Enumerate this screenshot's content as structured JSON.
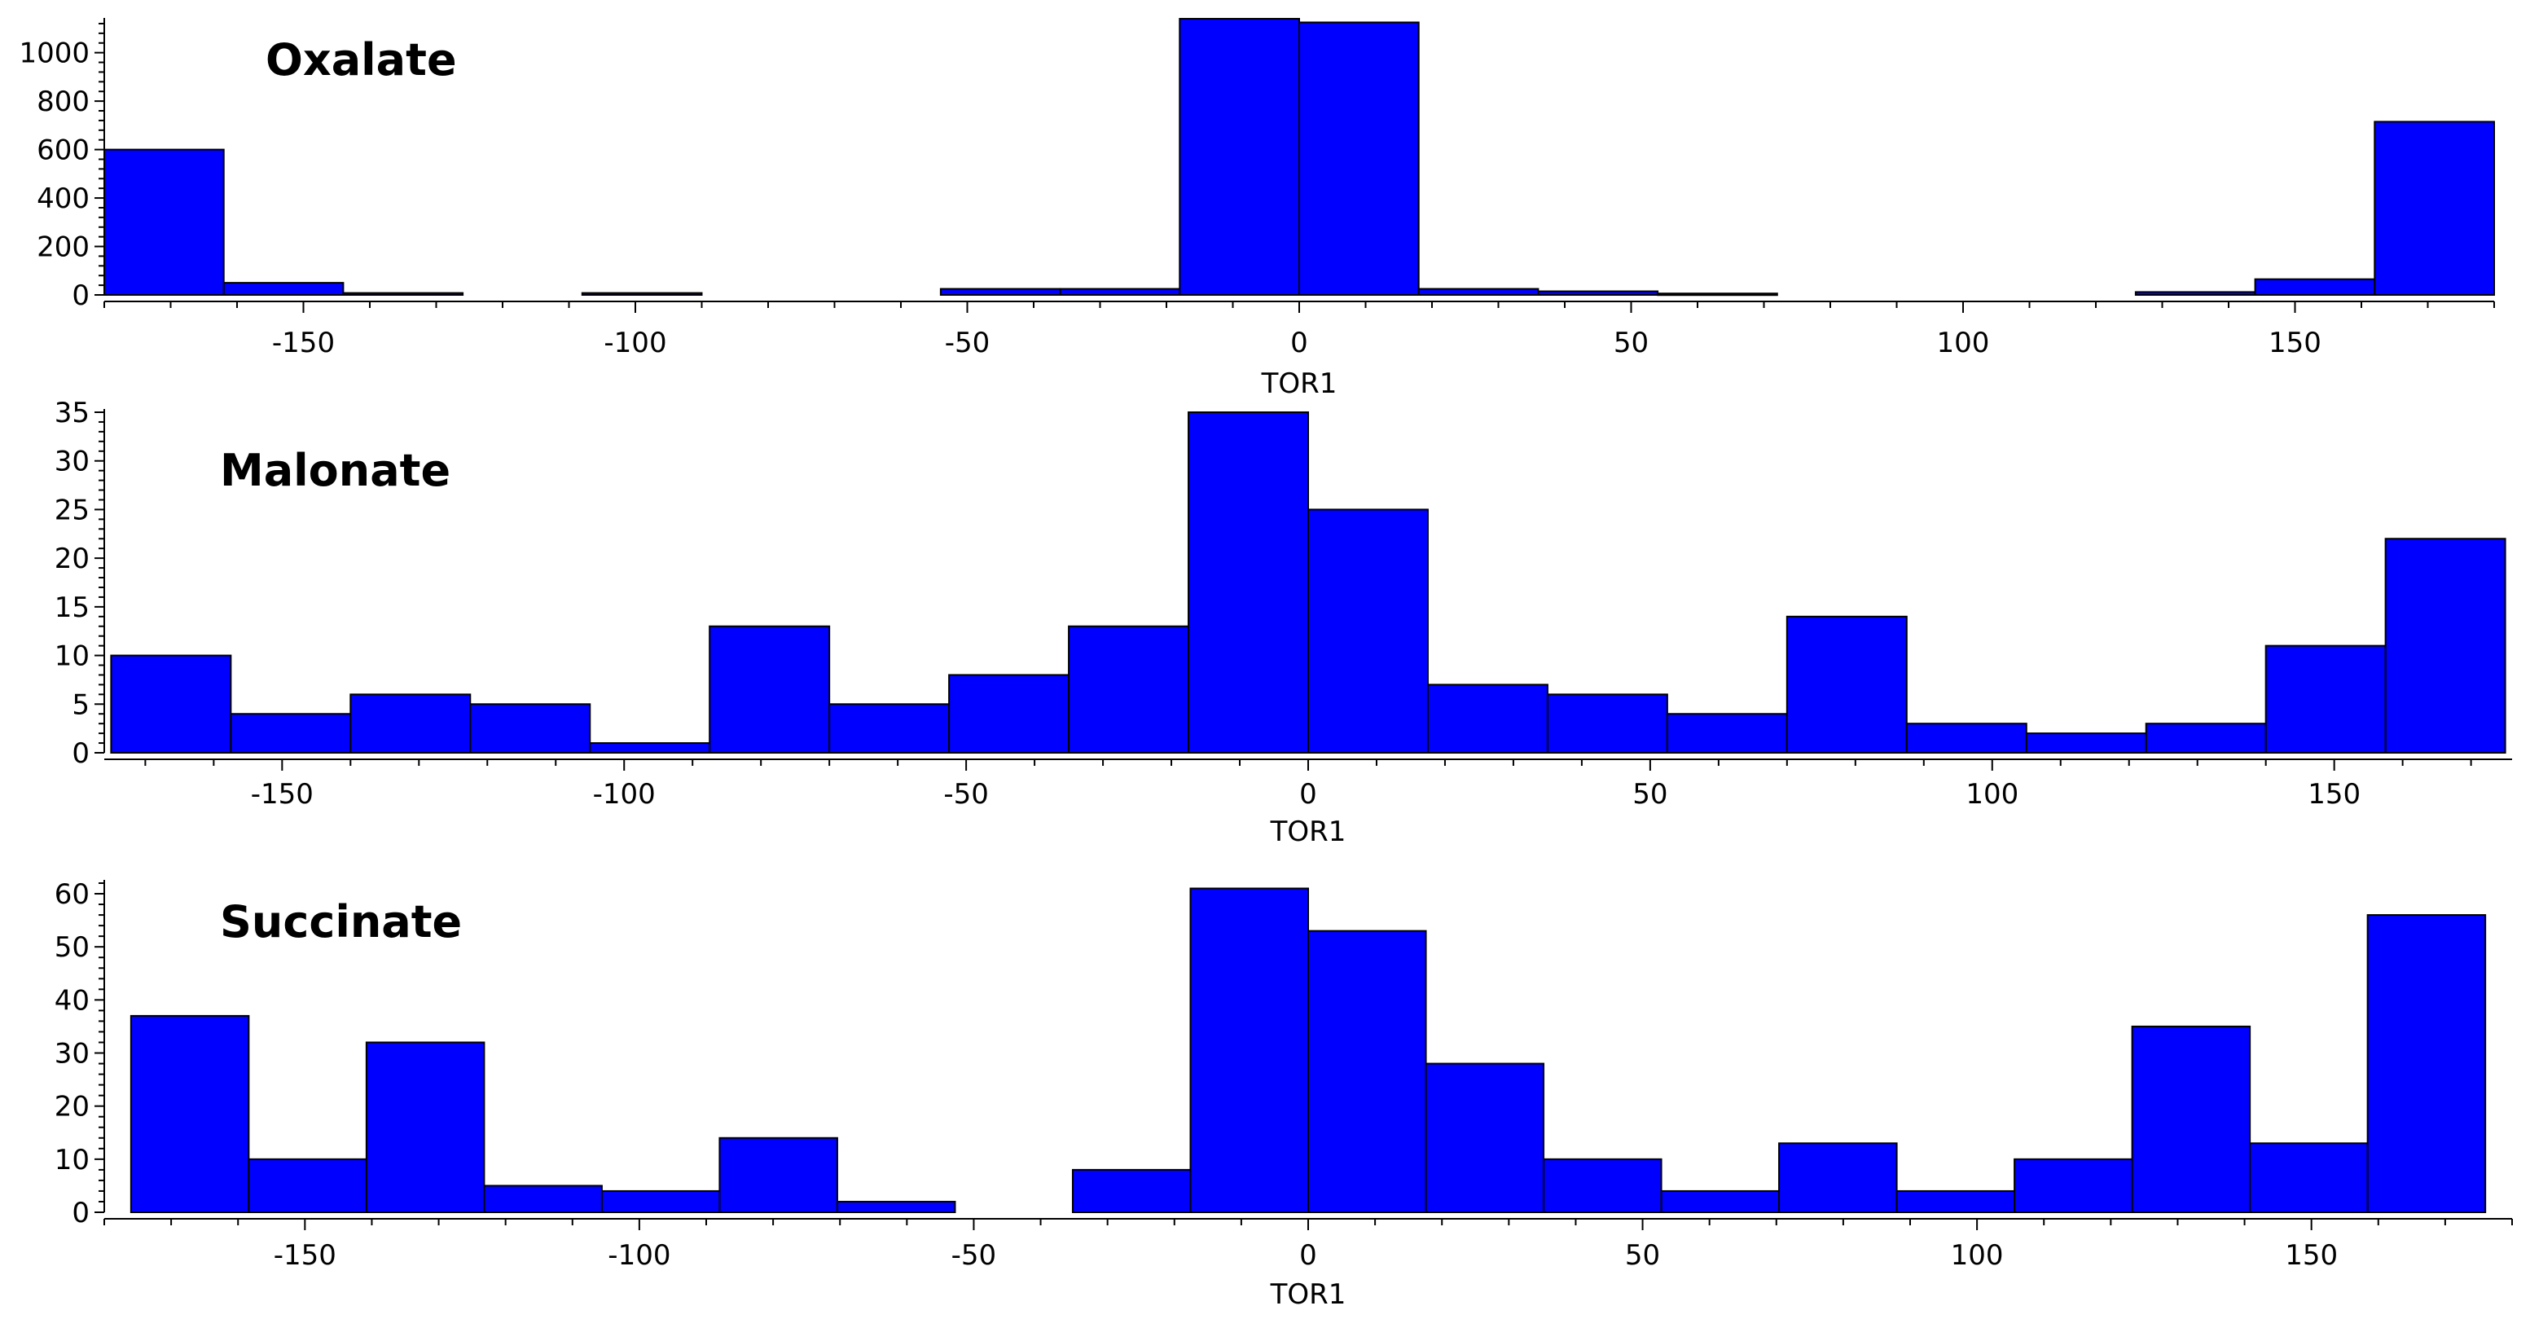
{
  "chart_data": [
    {
      "type": "bar",
      "title": "Oxalate",
      "xlabel": "TOR1",
      "ylabel": "",
      "xlim": [
        -180,
        180
      ],
      "ylim": [
        0,
        1130
      ],
      "xticks": [
        -150,
        -100,
        -50,
        0,
        50,
        100,
        150
      ],
      "yticks": [
        0,
        200,
        400,
        600,
        800,
        1000
      ],
      "bin_width": 18,
      "bins": [
        {
          "x0": -180,
          "x1": -162,
          "value": 600
        },
        {
          "x0": -162,
          "x1": -144,
          "value": 50
        },
        {
          "x0": -144,
          "x1": -126,
          "value": 8
        },
        {
          "x0": -108,
          "x1": -90,
          "value": 8
        },
        {
          "x0": -54,
          "x1": -36,
          "value": 25
        },
        {
          "x0": -36,
          "x1": -18,
          "value": 25
        },
        {
          "x0": -18,
          "x1": 0,
          "value": 1140
        },
        {
          "x0": 0,
          "x1": 18,
          "value": 1125
        },
        {
          "x0": 18,
          "x1": 36,
          "value": 25
        },
        {
          "x0": 36,
          "x1": 54,
          "value": 15
        },
        {
          "x0": 54,
          "x1": 72,
          "value": 6
        },
        {
          "x0": 126,
          "x1": 144,
          "value": 12
        },
        {
          "x0": 144,
          "x1": 162,
          "value": 65
        },
        {
          "x0": 162,
          "x1": 180,
          "value": 715
        }
      ]
    },
    {
      "type": "bar",
      "title": "Malonate",
      "xlabel": "TOR1",
      "ylabel": "",
      "xlim": [
        -176,
        176
      ],
      "ylim": [
        0,
        35
      ],
      "xticks": [
        -150,
        -100,
        -50,
        0,
        50,
        100,
        150
      ],
      "yticks": [
        0,
        5,
        10,
        15,
        20,
        25,
        30,
        35
      ],
      "bin_width": 17.5,
      "bins": [
        {
          "x0": -175,
          "x1": -157.5,
          "value": 10
        },
        {
          "x0": -157.5,
          "x1": -140,
          "value": 4
        },
        {
          "x0": -140,
          "x1": -122.5,
          "value": 6
        },
        {
          "x0": -122.5,
          "x1": -105,
          "value": 5
        },
        {
          "x0": -105,
          "x1": -87.5,
          "value": 1
        },
        {
          "x0": -87.5,
          "x1": -70,
          "value": 13
        },
        {
          "x0": -70,
          "x1": -52.5,
          "value": 5
        },
        {
          "x0": -52.5,
          "x1": -35,
          "value": 8
        },
        {
          "x0": -35,
          "x1": -17.5,
          "value": 13
        },
        {
          "x0": -17.5,
          "x1": 0,
          "value": 35
        },
        {
          "x0": 0,
          "x1": 17.5,
          "value": 25
        },
        {
          "x0": 17.5,
          "x1": 35,
          "value": 7
        },
        {
          "x0": 35,
          "x1": 52.5,
          "value": 6
        },
        {
          "x0": 52.5,
          "x1": 70,
          "value": 4
        },
        {
          "x0": 70,
          "x1": 87.5,
          "value": 14
        },
        {
          "x0": 87.5,
          "x1": 105,
          "value": 3
        },
        {
          "x0": 105,
          "x1": 122.5,
          "value": 2
        },
        {
          "x0": 122.5,
          "x1": 140,
          "value": 3
        },
        {
          "x0": 140,
          "x1": 157.5,
          "value": 11
        },
        {
          "x0": 157.5,
          "x1": 175,
          "value": 22
        }
      ]
    },
    {
      "type": "bar",
      "title": "Succinate",
      "xlabel": "TOR1",
      "ylabel": "",
      "xlim": [
        -180,
        180
      ],
      "ylim": [
        0,
        62
      ],
      "xticks": [
        -150,
        -100,
        -50,
        0,
        50,
        100,
        150
      ],
      "yticks": [
        0,
        10,
        20,
        30,
        40,
        50,
        60
      ],
      "bin_width": 17.6,
      "bins": [
        {
          "x0": -176,
          "x1": -158.4,
          "value": 37
        },
        {
          "x0": -158.4,
          "x1": -140.8,
          "value": 10
        },
        {
          "x0": -140.8,
          "x1": -123.2,
          "value": 32
        },
        {
          "x0": -123.2,
          "x1": -105.6,
          "value": 5
        },
        {
          "x0": -105.6,
          "x1": -88,
          "value": 4
        },
        {
          "x0": -88,
          "x1": -70.4,
          "value": 14
        },
        {
          "x0": -70.4,
          "x1": -52.8,
          "value": 2
        },
        {
          "x0": -35.2,
          "x1": -17.6,
          "value": 8
        },
        {
          "x0": -17.6,
          "x1": 0,
          "value": 61
        },
        {
          "x0": 0,
          "x1": 17.6,
          "value": 53
        },
        {
          "x0": 17.6,
          "x1": 35.2,
          "value": 28
        },
        {
          "x0": 35.2,
          "x1": 52.8,
          "value": 10
        },
        {
          "x0": 52.8,
          "x1": 70.4,
          "value": 4
        },
        {
          "x0": 70.4,
          "x1": 88,
          "value": 13
        },
        {
          "x0": 88,
          "x1": 105.6,
          "value": 4
        },
        {
          "x0": 105.6,
          "x1": 123.2,
          "value": 10
        },
        {
          "x0": 123.2,
          "x1": 140.8,
          "value": 35
        },
        {
          "x0": 140.8,
          "x1": 158.4,
          "value": 13
        },
        {
          "x0": 158.4,
          "x1": 176,
          "value": 56
        }
      ]
    }
  ],
  "colors": {
    "bar_fill": "#0000ff",
    "bar_stroke": "#000000",
    "axis": "#000000"
  }
}
